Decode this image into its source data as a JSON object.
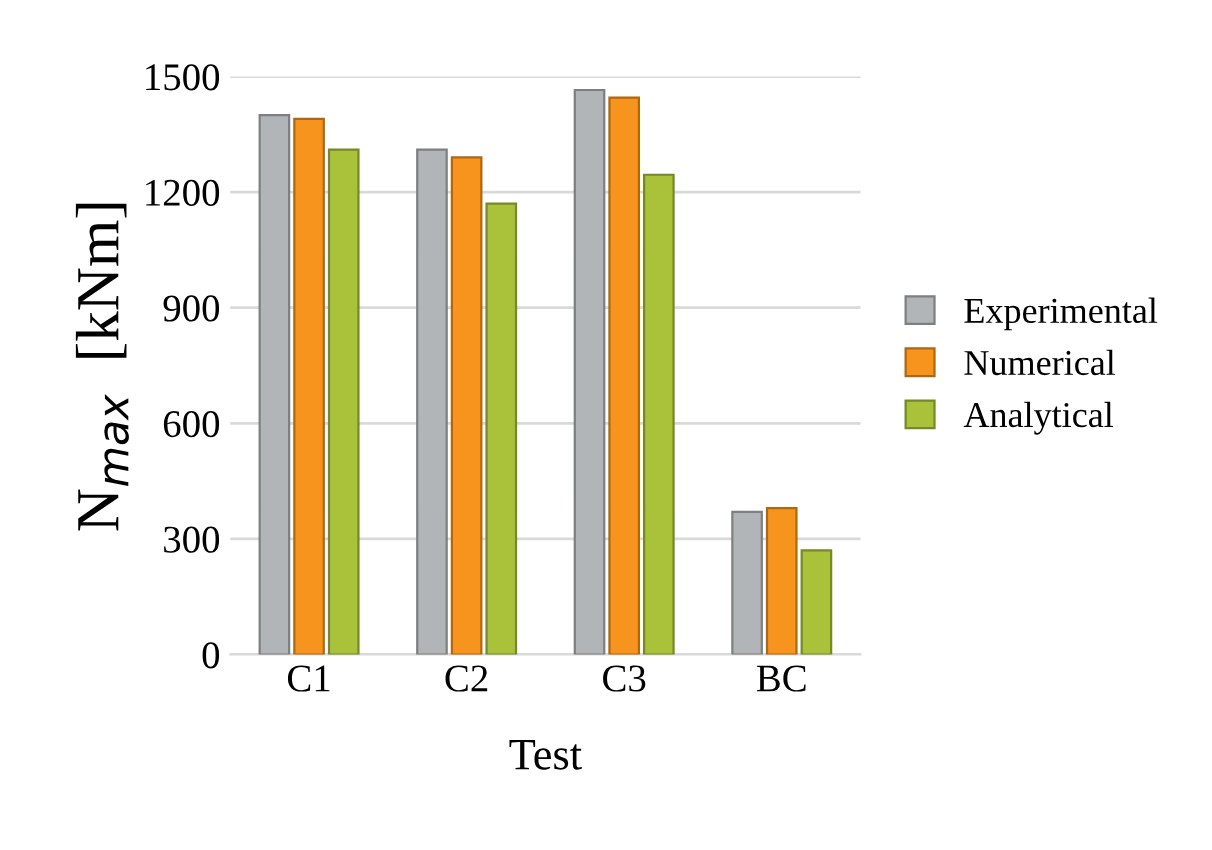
{
  "chart_data": {
    "type": "bar",
    "xlabel": "Test",
    "ylabel": "N$_{max}$  [kNm]",
    "categories": [
      "C1",
      "C2",
      "C3",
      "BC"
    ],
    "series": [
      {
        "name": "Experimental",
        "color": "#b2b5b7",
        "values": [
          1400,
          1310,
          1465,
          370
        ]
      },
      {
        "name": "Numerical",
        "color": "#f7941d",
        "values": [
          1390,
          1290,
          1445,
          380
        ]
      },
      {
        "name": "Analytical",
        "color": "#a9c23a",
        "values": [
          1310,
          1170,
          1245,
          270
        ]
      }
    ],
    "ylim": [
      0,
      1500
    ],
    "yticks": [
      0,
      300,
      600,
      900,
      1200,
      1500
    ],
    "grid": "y",
    "legend": "right"
  }
}
